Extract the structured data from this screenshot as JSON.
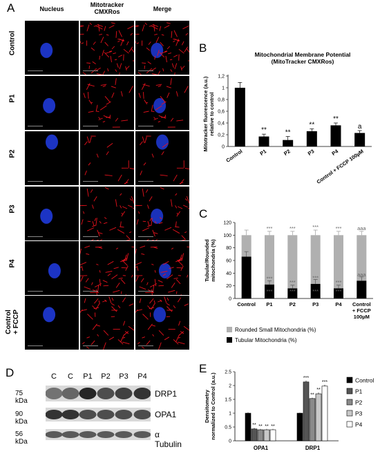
{
  "panels": {
    "A": "A",
    "B": "B",
    "C": "C",
    "D": "D",
    "E": "E"
  },
  "panelA": {
    "columns": [
      "Nucleus",
      "Mitotracker\nCMXRos",
      "Merge"
    ],
    "rows": [
      "Control",
      "P1",
      "P2",
      "P3",
      "P4",
      "Control\n+ FCCP"
    ]
  },
  "chart_data": [
    {
      "id": "B",
      "type": "bar",
      "title": "Mitochondrial Membrane Potential\n(MitoTracker CMXRos)",
      "ylabel": "Mitotracker fluorescence (a.u.)\nrelative to control",
      "categories": [
        "Control",
        "P1",
        "P2",
        "P3",
        "P4",
        "Control + FCCP 100µM"
      ],
      "values": [
        1.0,
        0.17,
        0.11,
        0.26,
        0.36,
        0.23
      ],
      "errors": [
        0.09,
        0.04,
        0.06,
        0.04,
        0.04,
        0.04
      ],
      "annotations": [
        "",
        "**",
        "**",
        "**",
        "**",
        "a"
      ],
      "ylim": [
        0,
        1.2
      ],
      "yticks": [
        "0",
        "0,2",
        "0,4",
        "0,6",
        "0,8",
        "1",
        "1,2"
      ],
      "colors": {
        "bar": "#000000"
      }
    },
    {
      "id": "C",
      "type": "bar",
      "stacked": true,
      "ylabel": "Tubular/Rounded\nmitochondria (%)",
      "categories": [
        "Control",
        "P1",
        "P2",
        "P3",
        "P4",
        "Control\n+ FCCP\n100µM"
      ],
      "series": [
        {
          "name": "Tubular Mitochondria (%)",
          "values": [
            66,
            22,
            16,
            23,
            16,
            28
          ],
          "errors": [
            8,
            6,
            5,
            7,
            5,
            6
          ],
          "color": "#000000"
        },
        {
          "name": "Rounded Small Mitochondria (%)",
          "values": [
            34,
            78,
            84,
            77,
            84,
            72
          ],
          "errors": [
            8,
            6,
            6,
            8,
            6,
            6
          ],
          "color": "#b0b0b0"
        }
      ],
      "annotations_top": [
        "",
        "***",
        "***",
        "***",
        "***",
        "aaa"
      ],
      "annotations_mid": [
        "",
        "***",
        "***",
        "***",
        "***",
        "aaa"
      ],
      "annotations_low": [
        "",
        "***",
        "***",
        "***",
        "***",
        ""
      ],
      "ylim": [
        0,
        120
      ],
      "yticks": [
        "0",
        "20",
        "40",
        "60",
        "80",
        "100",
        "120"
      ],
      "legend": [
        "Rounded Small Mitochondria (%)",
        "Tubular Mitochondria (%)"
      ]
    },
    {
      "id": "E",
      "type": "bar",
      "ylabel": "Densitometry\nnormalized to Control (a.u.)",
      "categories": [
        "OPA1",
        "DRP1"
      ],
      "series": [
        {
          "name": "Control",
          "values": [
            1.0,
            1.0
          ],
          "errors": [
            0.03,
            0.02
          ],
          "color": "#000000"
        },
        {
          "name": "P1",
          "values": [
            0.43,
            2.13
          ],
          "errors": [
            0.04,
            0.05
          ],
          "color": "#555555"
        },
        {
          "name": "P2",
          "values": [
            0.4,
            1.53
          ],
          "errors": [
            0.03,
            0.03
          ],
          "color": "#8a8a8a"
        },
        {
          "name": "P3",
          "values": [
            0.4,
            1.7
          ],
          "errors": [
            0.03,
            0.05
          ],
          "color": "#c8c8c8"
        },
        {
          "name": "P4",
          "values": [
            0.4,
            1.98
          ],
          "errors": [
            0.03,
            0.05
          ],
          "color": "#ffffff"
        }
      ],
      "annotations": [
        [
          "",
          "**",
          "**",
          "**",
          "**"
        ],
        [
          "",
          "***",
          "**",
          "**",
          "***"
        ]
      ],
      "ylim": [
        0,
        2.5
      ],
      "yticks": [
        "0",
        "0.5",
        "1",
        "1.5",
        "2",
        "2.5"
      ]
    }
  ],
  "panelD": {
    "lanes": [
      "C",
      "C",
      "P1",
      "P2",
      "P3",
      "P4"
    ],
    "markers": [
      "75 kDa",
      "90 kDa",
      "56 kDa"
    ],
    "proteins": [
      "DRP1",
      "OPA1",
      "α Tubulin"
    ]
  }
}
